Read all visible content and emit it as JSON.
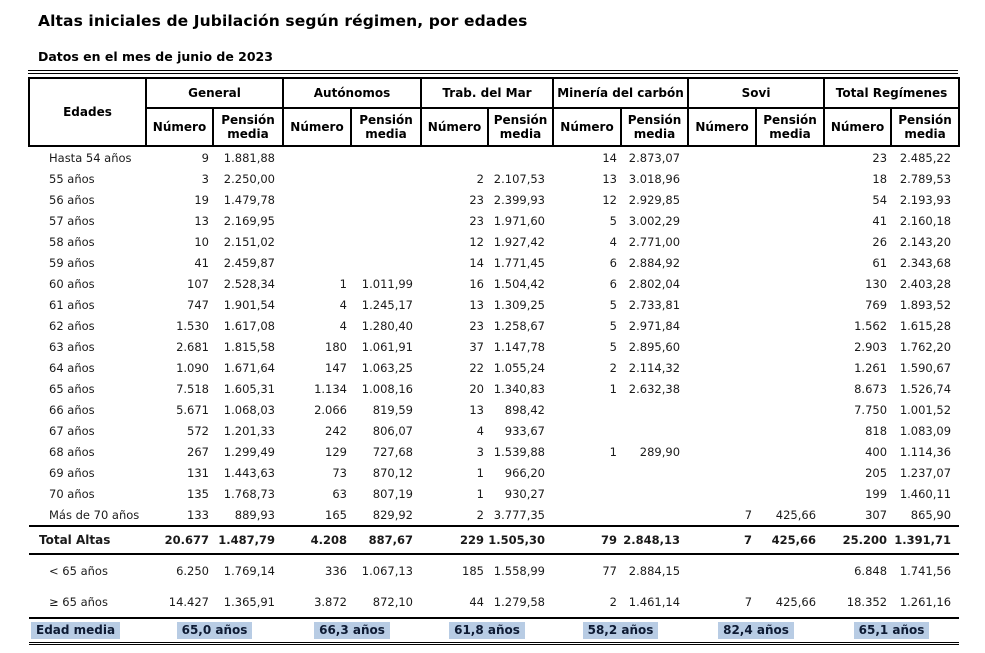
{
  "title": "Altas iniciales de Jubilación según régimen, por edades",
  "subtitle": "Datos en el mes de junio de 2023",
  "colors": {
    "highlight": "#b8cce4"
  },
  "table": {
    "edades_header": "Edades",
    "groups": [
      {
        "label": "General"
      },
      {
        "label": "Autónomos"
      },
      {
        "label": "Trab. del Mar"
      },
      {
        "label": "Minería del carbón"
      },
      {
        "label": "Sovi"
      },
      {
        "label": "Total Regímenes"
      }
    ],
    "subheaders": {
      "numero": "Número",
      "pension": "Pensión media"
    },
    "age_rows": [
      {
        "label": "Hasta 54 años",
        "values": [
          "9",
          "1.881,88",
          "",
          "",
          "",
          "",
          "14",
          "2.873,07",
          "",
          "",
          "23",
          "2.485,22"
        ]
      },
      {
        "label": "55 años",
        "values": [
          "3",
          "2.250,00",
          "",
          "",
          "2",
          "2.107,53",
          "13",
          "3.018,96",
          "",
          "",
          "18",
          "2.789,53"
        ]
      },
      {
        "label": "56 años",
        "values": [
          "19",
          "1.479,78",
          "",
          "",
          "23",
          "2.399,93",
          "12",
          "2.929,85",
          "",
          "",
          "54",
          "2.193,93"
        ]
      },
      {
        "label": "57 años",
        "values": [
          "13",
          "2.169,95",
          "",
          "",
          "23",
          "1.971,60",
          "5",
          "3.002,29",
          "",
          "",
          "41",
          "2.160,18"
        ]
      },
      {
        "label": "58 años",
        "values": [
          "10",
          "2.151,02",
          "",
          "",
          "12",
          "1.927,42",
          "4",
          "2.771,00",
          "",
          "",
          "26",
          "2.143,20"
        ]
      },
      {
        "label": "59 años",
        "values": [
          "41",
          "2.459,87",
          "",
          "",
          "14",
          "1.771,45",
          "6",
          "2.884,92",
          "",
          "",
          "61",
          "2.343,68"
        ]
      },
      {
        "label": "60 años",
        "values": [
          "107",
          "2.528,34",
          "1",
          "1.011,99",
          "16",
          "1.504,42",
          "6",
          "2.802,04",
          "",
          "",
          "130",
          "2.403,28"
        ]
      },
      {
        "label": "61 años",
        "values": [
          "747",
          "1.901,54",
          "4",
          "1.245,17",
          "13",
          "1.309,25",
          "5",
          "2.733,81",
          "",
          "",
          "769",
          "1.893,52"
        ]
      },
      {
        "label": "62 años",
        "values": [
          "1.530",
          "1.617,08",
          "4",
          "1.280,40",
          "23",
          "1.258,67",
          "5",
          "2.971,84",
          "",
          "",
          "1.562",
          "1.615,28"
        ]
      },
      {
        "label": "63 años",
        "values": [
          "2.681",
          "1.815,58",
          "180",
          "1.061,91",
          "37",
          "1.147,78",
          "5",
          "2.895,60",
          "",
          "",
          "2.903",
          "1.762,20"
        ]
      },
      {
        "label": "64 años",
        "values": [
          "1.090",
          "1.671,64",
          "147",
          "1.063,25",
          "22",
          "1.055,24",
          "2",
          "2.114,32",
          "",
          "",
          "1.261",
          "1.590,67"
        ]
      },
      {
        "label": "65 años",
        "values": [
          "7.518",
          "1.605,31",
          "1.134",
          "1.008,16",
          "20",
          "1.340,83",
          "1",
          "2.632,38",
          "",
          "",
          "8.673",
          "1.526,74"
        ]
      },
      {
        "label": "66 años",
        "values": [
          "5.671",
          "1.068,03",
          "2.066",
          "819,59",
          "13",
          "898,42",
          "",
          "",
          "",
          "",
          "7.750",
          "1.001,52"
        ]
      },
      {
        "label": "67 años",
        "values": [
          "572",
          "1.201,33",
          "242",
          "806,07",
          "4",
          "933,67",
          "",
          "",
          "",
          "",
          "818",
          "1.083,09"
        ]
      },
      {
        "label": "68 años",
        "values": [
          "267",
          "1.299,49",
          "129",
          "727,68",
          "3",
          "1.539,88",
          "1",
          "289,90",
          "",
          "",
          "400",
          "1.114,36"
        ]
      },
      {
        "label": "69 años",
        "values": [
          "131",
          "1.443,63",
          "73",
          "870,12",
          "1",
          "966,20",
          "",
          "",
          "",
          "",
          "205",
          "1.237,07"
        ]
      },
      {
        "label": "70 años",
        "values": [
          "135",
          "1.768,73",
          "63",
          "807,19",
          "1",
          "930,27",
          "",
          "",
          "",
          "",
          "199",
          "1.460,11"
        ]
      },
      {
        "label": "Más de 70 años",
        "values": [
          "133",
          "889,93",
          "165",
          "829,92",
          "2",
          "3.777,35",
          "",
          "",
          "7",
          "425,66",
          "307",
          "865,90"
        ]
      }
    ],
    "total_row": {
      "label": "Total Altas",
      "values": [
        "20.677",
        "1.487,79",
        "4.208",
        "887,67",
        "229",
        "1.505,30",
        "79",
        "2.848,13",
        "7",
        "425,66",
        "25.200",
        "1.391,71"
      ]
    },
    "summary_rows": [
      {
        "label": "< 65 años",
        "values": [
          "6.250",
          "1.769,14",
          "336",
          "1.067,13",
          "185",
          "1.558,99",
          "77",
          "2.884,15",
          "",
          "",
          "6.848",
          "1.741,56"
        ]
      },
      {
        "label": "≥ 65 años",
        "values": [
          "14.427",
          "1.365,91",
          "3.872",
          "872,10",
          "44",
          "1.279,58",
          "2",
          "1.461,14",
          "7",
          "425,66",
          "18.352",
          "1.261,16"
        ]
      }
    ],
    "edad_media": {
      "label": "Edad media",
      "values": [
        "65,0 años",
        "66,3 años",
        "61,8 años",
        "58,2 años",
        "82,4 años",
        "65,1 años"
      ]
    }
  }
}
